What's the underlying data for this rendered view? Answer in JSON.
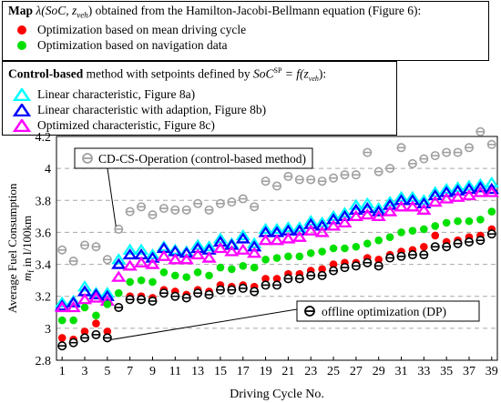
{
  "legend_top": {
    "title_bold": "Map",
    "title_math": "λ(SoC, z",
    "title_math_sub": "veh",
    "title_rest": ") obtained from the Hamilton-Jacobi-Bellmann equation (Figure 6):",
    "items": [
      {
        "label": "Optimization based on mean driving cycle",
        "color": "#ff0000",
        "marker": "circle"
      },
      {
        "label": "Optimization based on navigation data",
        "color": "#00e000",
        "marker": "circle"
      }
    ]
  },
  "legend_bottom": {
    "title_bold": "Control-based",
    "title_rest": " method with setpoints defined by ",
    "title_math": "SoC",
    "title_math_sup": "SP",
    "title_math2": " = f(z",
    "title_math2_sub": "veh",
    "title_math2_end": "):",
    "items": [
      {
        "label": "Linear characteristic, Figure 8a)",
        "color": "#00ffff",
        "marker": "triangle"
      },
      {
        "label": "Linear characteristic with adaption, Figure 8b)",
        "color": "#0000ff",
        "marker": "triangle"
      },
      {
        "label": "Optimized characteristic, Figure 8c)",
        "color": "#ff00ff",
        "marker": "triangle"
      }
    ]
  },
  "chart_data": {
    "type": "scatter",
    "xlabel": "Driving Cycle No.",
    "ylabel_line1": "Average Fuel Consumption",
    "ylabel_line2_symbol": "m",
    "ylabel_line2_sub": "f",
    "ylabel_line2_rest": " in l/100km",
    "xlim": [
      0.5,
      39.5
    ],
    "ylim": [
      2.8,
      4.2
    ],
    "x_ticks": [
      1,
      3,
      5,
      7,
      9,
      11,
      13,
      15,
      17,
      19,
      21,
      23,
      25,
      27,
      29,
      31,
      33,
      35,
      37,
      39
    ],
    "y_ticks": [
      2.8,
      3.0,
      3.2,
      3.4,
      3.6,
      3.8,
      4.0,
      4.2
    ],
    "y_tick_labels": [
      "2.8",
      "3",
      "3.2",
      "3.4",
      "3.6",
      "3.8",
      "4",
      "4.2"
    ],
    "grid": "horizontal dashed",
    "annotations": [
      {
        "text": "CD-CS-Operation (control-based method)",
        "series": "CD-CS-Operation",
        "target_x": 6
      },
      {
        "text": "offline optimization (DP)",
        "series": "offline optimization (DP)",
        "target_x": 5
      }
    ],
    "series": [
      {
        "name": "CD-CS-Operation",
        "color": "#a0a0a0",
        "marker": "circle-line",
        "values": [
          3.49,
          3.42,
          3.52,
          3.51,
          3.43,
          3.62,
          3.73,
          3.76,
          3.71,
          3.75,
          3.74,
          3.74,
          3.78,
          3.74,
          3.78,
          3.79,
          3.81,
          3.76,
          3.92,
          3.89,
          3.95,
          3.93,
          3.93,
          3.92,
          3.94,
          3.96,
          3.96,
          4.1,
          3.98,
          4.0,
          4.13,
          4.03,
          4.06,
          4.08,
          4.1,
          4.1,
          4.13,
          4.23,
          4.15
        ]
      },
      {
        "name": "Linear characteristic, Figure 8a)",
        "color": "#00ffff",
        "marker": "triangle",
        "values": [
          3.16,
          3.17,
          3.26,
          3.22,
          3.22,
          3.43,
          3.49,
          3.49,
          3.46,
          3.51,
          3.49,
          3.48,
          3.52,
          3.51,
          3.56,
          3.53,
          3.58,
          3.53,
          3.62,
          3.62,
          3.63,
          3.63,
          3.67,
          3.66,
          3.7,
          3.72,
          3.77,
          3.78,
          3.75,
          3.79,
          3.82,
          3.82,
          3.8,
          3.85,
          3.87,
          3.88,
          3.89,
          3.9,
          3.91
        ]
      },
      {
        "name": "Linear characteristic with adaption, Figure 8b)",
        "color": "#0000ff",
        "marker": "triangle",
        "values": [
          3.14,
          3.16,
          3.23,
          3.21,
          3.2,
          3.4,
          3.46,
          3.46,
          3.44,
          3.5,
          3.48,
          3.47,
          3.5,
          3.49,
          3.54,
          3.52,
          3.56,
          3.51,
          3.6,
          3.6,
          3.61,
          3.61,
          3.65,
          3.64,
          3.68,
          3.7,
          3.74,
          3.75,
          3.73,
          3.77,
          3.8,
          3.8,
          3.78,
          3.83,
          3.85,
          3.86,
          3.87,
          3.88,
          3.87
        ]
      },
      {
        "name": "Optimized characteristic, Figure 8c)",
        "color": "#ff00ff",
        "marker": "triangle",
        "values": [
          3.13,
          3.13,
          3.18,
          3.19,
          3.17,
          3.32,
          3.39,
          3.41,
          3.4,
          3.45,
          3.43,
          3.43,
          3.46,
          3.44,
          3.5,
          3.48,
          3.49,
          3.47,
          3.55,
          3.55,
          3.56,
          3.57,
          3.61,
          3.6,
          3.64,
          3.66,
          3.7,
          3.71,
          3.7,
          3.73,
          3.76,
          3.76,
          3.74,
          3.79,
          3.81,
          3.82,
          3.83,
          3.85,
          3.85
        ]
      },
      {
        "name": "Optimization based on navigation data",
        "color": "#00e000",
        "marker": "circle",
        "values": [
          3.05,
          3.05,
          3.13,
          3.08,
          3.15,
          3.22,
          3.29,
          3.3,
          3.29,
          3.35,
          3.33,
          3.32,
          3.35,
          3.33,
          3.38,
          3.37,
          3.39,
          3.38,
          3.43,
          3.44,
          3.45,
          3.45,
          3.47,
          3.48,
          3.5,
          3.5,
          3.51,
          3.53,
          3.55,
          3.57,
          3.6,
          3.61,
          3.62,
          3.64,
          3.66,
          3.67,
          3.67,
          3.68,
          3.73
        ]
      },
      {
        "name": "Optimization based on mean driving cycle",
        "color": "#ff0000",
        "marker": "circle",
        "values": [
          2.94,
          2.93,
          2.98,
          3.03,
          2.98,
          3.13,
          3.2,
          3.2,
          3.19,
          3.24,
          3.23,
          3.21,
          3.24,
          3.23,
          3.27,
          3.26,
          3.27,
          3.26,
          3.31,
          3.31,
          3.34,
          3.34,
          3.36,
          3.37,
          3.4,
          3.41,
          3.41,
          3.44,
          3.43,
          3.46,
          3.48,
          3.49,
          3.51,
          3.58,
          3.54,
          3.55,
          3.57,
          3.58,
          3.62
        ]
      },
      {
        "name": "offline optimization (DP)",
        "color": "#000000",
        "marker": "circle-line",
        "values": [
          2.89,
          2.91,
          2.94,
          2.96,
          2.94,
          3.13,
          3.18,
          3.18,
          3.17,
          3.22,
          3.2,
          3.19,
          3.22,
          3.21,
          3.24,
          3.24,
          3.25,
          3.23,
          3.27,
          3.27,
          3.31,
          3.31,
          3.33,
          3.33,
          3.36,
          3.38,
          3.39,
          3.41,
          3.39,
          3.44,
          3.45,
          3.46,
          3.46,
          3.51,
          3.51,
          3.53,
          3.54,
          3.55,
          3.59
        ]
      }
    ]
  }
}
